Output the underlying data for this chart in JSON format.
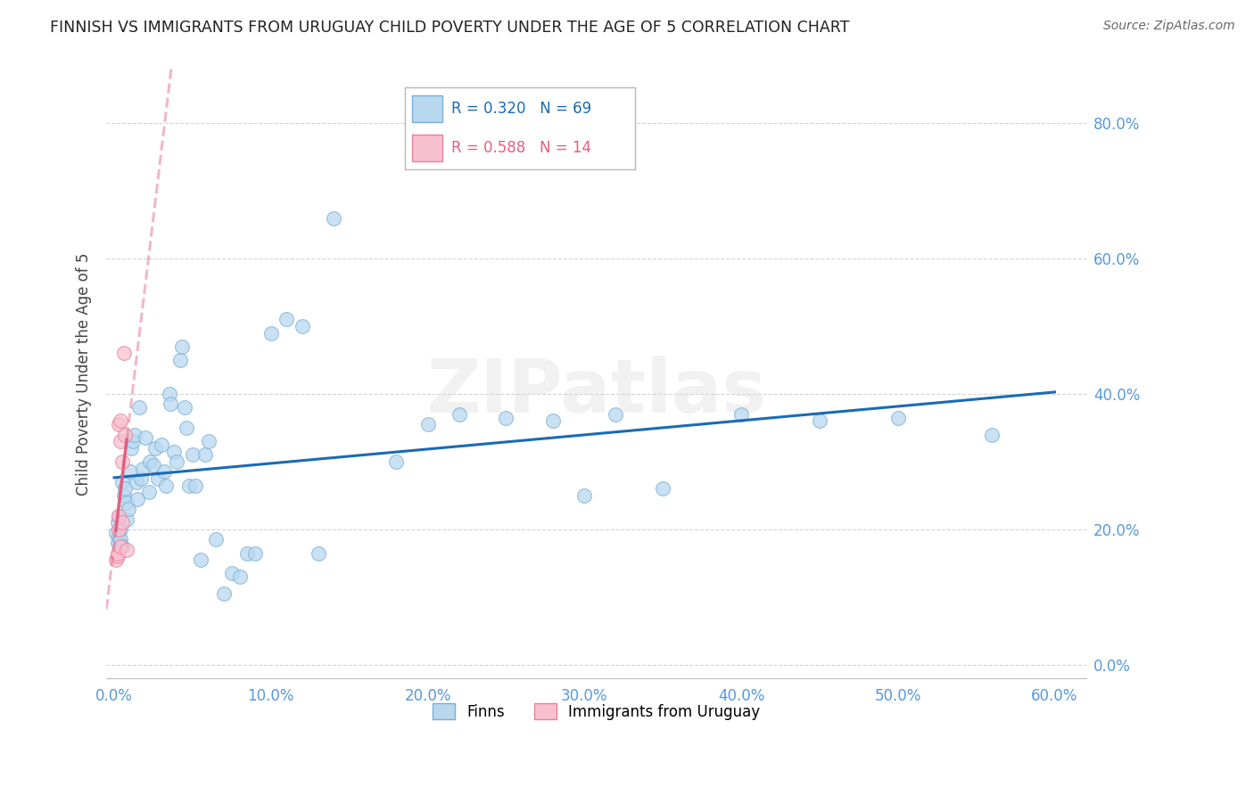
{
  "title": "FINNISH VS IMMIGRANTS FROM URUGUAY CHILD POVERTY UNDER THE AGE OF 5 CORRELATION CHART",
  "source": "Source: ZipAtlas.com",
  "ylabel": "Child Poverty Under the Age of 5",
  "xlim_min": -0.005,
  "xlim_max": 0.62,
  "ylim_min": -0.02,
  "ylim_max": 0.88,
  "yticks": [
    0.0,
    0.2,
    0.4,
    0.6,
    0.8
  ],
  "xticks": [
    0.0,
    0.1,
    0.2,
    0.3,
    0.4,
    0.5,
    0.6
  ],
  "finns_x": [
    0.001,
    0.002,
    0.002,
    0.003,
    0.003,
    0.004,
    0.004,
    0.005,
    0.005,
    0.006,
    0.007,
    0.008,
    0.008,
    0.009,
    0.01,
    0.011,
    0.012,
    0.013,
    0.014,
    0.015,
    0.016,
    0.017,
    0.018,
    0.02,
    0.022,
    0.023,
    0.025,
    0.026,
    0.028,
    0.03,
    0.032,
    0.033,
    0.035,
    0.036,
    0.038,
    0.04,
    0.042,
    0.043,
    0.045,
    0.046,
    0.048,
    0.05,
    0.052,
    0.055,
    0.058,
    0.06,
    0.065,
    0.07,
    0.075,
    0.08,
    0.085,
    0.09,
    0.1,
    0.11,
    0.12,
    0.13,
    0.14,
    0.18,
    0.2,
    0.22,
    0.25,
    0.28,
    0.3,
    0.32,
    0.35,
    0.4,
    0.45,
    0.5,
    0.56
  ],
  "finns_y": [
    0.195,
    0.18,
    0.21,
    0.19,
    0.22,
    0.2,
    0.185,
    0.27,
    0.175,
    0.25,
    0.26,
    0.24,
    0.215,
    0.23,
    0.285,
    0.32,
    0.33,
    0.34,
    0.27,
    0.245,
    0.38,
    0.275,
    0.29,
    0.335,
    0.255,
    0.3,
    0.295,
    0.32,
    0.275,
    0.325,
    0.285,
    0.265,
    0.4,
    0.385,
    0.315,
    0.3,
    0.45,
    0.47,
    0.38,
    0.35,
    0.265,
    0.31,
    0.265,
    0.155,
    0.31,
    0.33,
    0.185,
    0.105,
    0.135,
    0.13,
    0.165,
    0.165,
    0.49,
    0.51,
    0.5,
    0.165,
    0.66,
    0.3,
    0.355,
    0.37,
    0.365,
    0.36,
    0.25,
    0.37,
    0.26,
    0.37,
    0.36,
    0.365,
    0.34
  ],
  "uruguay_x": [
    0.001,
    0.002,
    0.002,
    0.003,
    0.003,
    0.003,
    0.004,
    0.004,
    0.004,
    0.005,
    0.005,
    0.006,
    0.007,
    0.008
  ],
  "uruguay_y": [
    0.155,
    0.16,
    0.165,
    0.2,
    0.22,
    0.355,
    0.36,
    0.33,
    0.175,
    0.3,
    0.21,
    0.46,
    0.34,
    0.17
  ],
  "finns_R": 0.32,
  "finns_N": 69,
  "uruguay_R": 0.588,
  "uruguay_N": 14,
  "finn_color": "#b8d8f0",
  "finn_edge_color": "#7bafd4",
  "uruguay_color": "#f8c0d0",
  "uruguay_edge_color": "#e8809a",
  "finn_line_color": "#1a6bb5",
  "uruguay_line_color": "#e06080",
  "axis_color": "#5599dd",
  "background_color": "#ffffff",
  "grid_color": "#c8c8c8",
  "title_color": "#222222",
  "watermark": "ZIPatlas"
}
